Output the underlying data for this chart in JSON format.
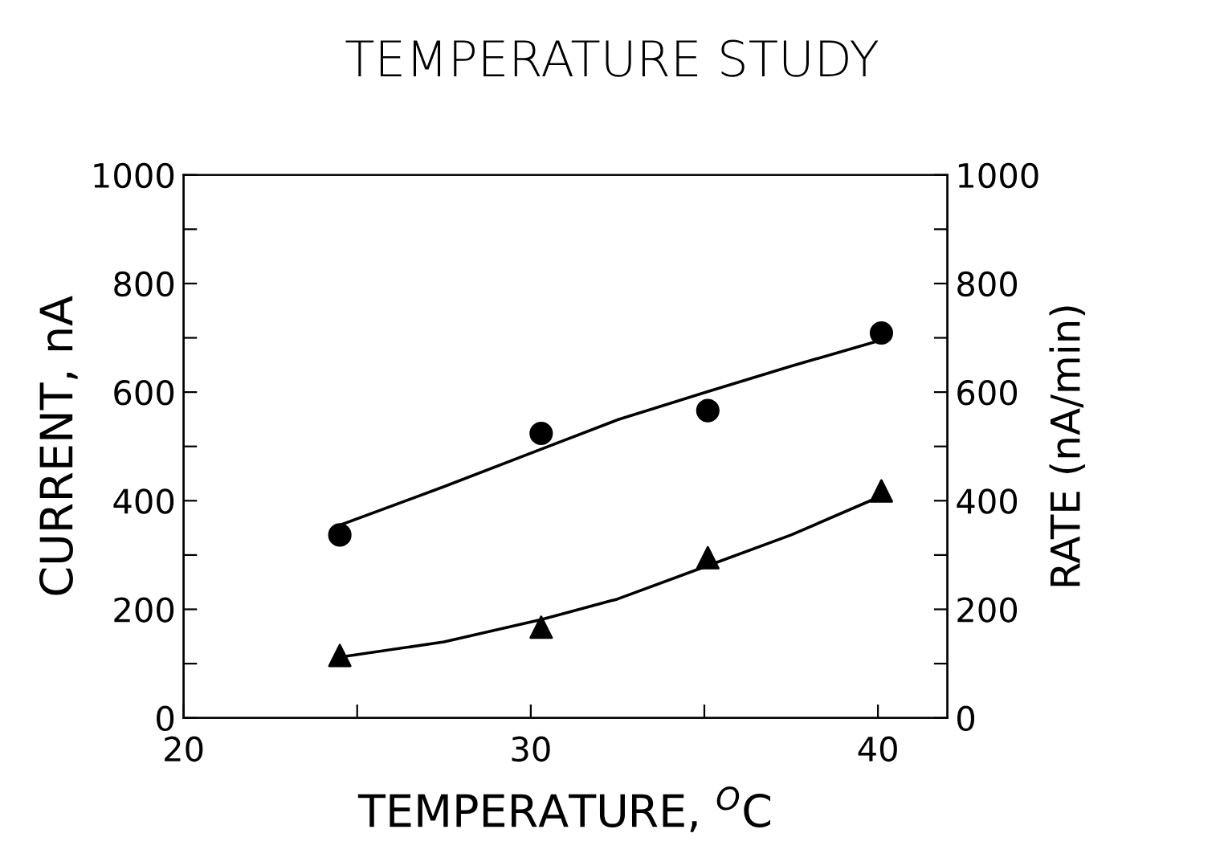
{
  "chart_data": {
    "type": "scatter",
    "title": "TEMPERATURE STUDY",
    "xlabel": "TEMPERATURE, $^{O}$C",
    "ylabel": "CURRENT, nA",
    "y2label": "RATE (nA/min)",
    "xlim": [
      20,
      42
    ],
    "xticks": [
      20,
      {
        "value": 25,
        "label": null
      },
      30,
      {
        "value": 35,
        "label": null
      },
      40
    ],
    "ylim": [
      0,
      1000
    ],
    "yticks": [
      0,
      {
        "value": 100,
        "label": null
      },
      200,
      {
        "value": 300,
        "label": null
      },
      400,
      {
        "value": 500,
        "label": null
      },
      600,
      {
        "value": 700,
        "label": null
      },
      800,
      {
        "value": 900,
        "label": null
      },
      1000
    ],
    "y2lim": [
      0,
      1000
    ],
    "y2ticks": [
      0,
      {
        "value": 100,
        "label": null
      },
      200,
      {
        "value": 300,
        "label": null
      },
      400,
      {
        "value": 500,
        "label": null
      },
      600,
      {
        "value": 700,
        "label": null
      },
      800,
      {
        "value": 900,
        "label": null
      },
      1000
    ],
    "grid": false,
    "legend": false,
    "series": [
      {
        "marker": "circle",
        "color": "#000000",
        "x": [
          24.5,
          30.3,
          35.1,
          40.1
        ],
        "values": [
          337,
          524,
          566,
          709
        ]
      },
      {
        "type": "line",
        "marker": "none",
        "color": "#000000",
        "x": [
          24.5,
          27.5,
          30.3,
          32.5,
          35,
          37.5,
          40
        ],
        "values": [
          355,
          426,
          495,
          549,
          599,
          648,
          694
        ]
      },
      {
        "marker": "triangle",
        "color": "#000000",
        "x": [
          24.5,
          30.3,
          35.1,
          40.1
        ],
        "values": [
          115,
          167,
          295,
          418
        ]
      },
      {
        "type": "line",
        "marker": "none",
        "color": "#000000",
        "x": [
          24.5,
          27.5,
          30.3,
          32.5,
          35,
          37.5,
          40
        ],
        "values": [
          112,
          140,
          181,
          219,
          278,
          337,
          406
        ]
      }
    ]
  }
}
